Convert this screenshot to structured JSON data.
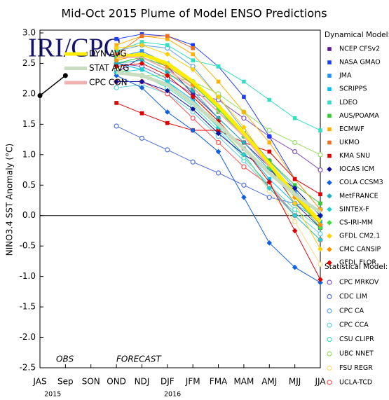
{
  "chart_data": {
    "type": "line",
    "title": "Mid-Oct 2015 Plume of Model ENSO Predictions",
    "ylabel": "NINO3.4 SST Anomaly (°C)",
    "logo": "IRI/CPC",
    "annotations": [
      "OBS",
      "FORECAST"
    ],
    "categories": [
      "JAS",
      "Sep",
      "SON",
      "OND",
      "NDJ",
      "DJF",
      "JFM",
      "FMA",
      "MAM",
      "AMJ",
      "MJJ",
      "JJA"
    ],
    "year_labels": [
      "2015",
      "2016"
    ],
    "ylim": [
      -2.5,
      3.0
    ],
    "yticks": [
      {
        "value": 3.0,
        "label": "3.0"
      },
      2.5,
      {
        "value": 2.0,
        "label": "2.0"
      },
      1.5,
      {
        "value": 1.0,
        "label": "1.0"
      },
      0.5,
      {
        "value": 0.0,
        "label": "0.0"
      },
      -0.5,
      {
        "value": -1.0,
        "label": "-1.0"
      },
      -1.5,
      {
        "value": -2.0,
        "label": "-2.0"
      },
      -2.5
    ],
    "dynamical_legend_title": "Dynamical Model:",
    "statistical_legend_title": "Statistical Model:",
    "observed": {
      "color": "#000000",
      "values": [
        1.97,
        2.3,
        null,
        null,
        null,
        null,
        null,
        null,
        null,
        null,
        null,
        null
      ]
    },
    "series": [
      {
        "name": "NCEP CFSv2",
        "kind": "dynamical",
        "marker": "square",
        "color": "#5a189a",
        "values": [
          null,
          null,
          null,
          2.35,
          2.6,
          2.45,
          2.0,
          1.6,
          1.2,
          0.8,
          0.2,
          -0.2
        ]
      },
      {
        "name": "NASA GMAO",
        "kind": "dynamical",
        "marker": "square",
        "color": "#1e3cff",
        "values": [
          null,
          null,
          null,
          2.9,
          2.98,
          2.95,
          2.8,
          2.45,
          1.95,
          1.3,
          0.6,
          0.1
        ]
      },
      {
        "name": "JMA",
        "kind": "dynamical",
        "marker": "square",
        "color": "#1e90ff",
        "values": [
          null,
          null,
          null,
          2.6,
          2.7,
          2.5,
          2.15,
          1.75,
          1.3,
          0.85,
          0.4,
          0.0
        ]
      },
      {
        "name": "SCRIPPS",
        "kind": "dynamical",
        "marker": "square",
        "color": "#00bfff",
        "values": [
          null,
          null,
          null,
          2.5,
          2.4,
          2.2,
          1.9,
          1.5,
          1.1,
          0.6,
          0.2,
          -0.1
        ]
      },
      {
        "name": "LDEO",
        "kind": "dynamical",
        "marker": "square",
        "color": "#30e0c0",
        "values": [
          null,
          null,
          null,
          2.7,
          2.85,
          2.8,
          2.55,
          2.45,
          2.2,
          1.9,
          1.6,
          1.4
        ]
      },
      {
        "name": "AUS/POAMA",
        "kind": "dynamical",
        "marker": "square",
        "color": "#33cc33",
        "values": [
          null,
          null,
          null,
          2.5,
          2.6,
          2.4,
          2.1,
          1.7,
          1.35,
          0.9,
          0.5,
          0.2
        ]
      },
      {
        "name": "ECMWF",
        "kind": "dynamical",
        "marker": "square",
        "color": "#ffb000",
        "values": [
          null,
          null,
          null,
          2.8,
          2.95,
          2.9,
          2.65,
          2.2,
          1.7,
          1.2,
          0.6,
          0.1
        ]
      },
      {
        "name": "UKMO",
        "kind": "dynamical",
        "marker": "square",
        "color": "#f07020",
        "values": [
          null,
          null,
          null,
          2.65,
          2.95,
          2.95,
          2.75,
          null,
          null,
          null,
          null,
          null
        ]
      },
      {
        "name": "KMA SNU",
        "kind": "dynamical",
        "marker": "square",
        "color": "#e00000",
        "values": [
          null,
          null,
          null,
          1.85,
          1.68,
          1.52,
          1.4,
          1.4,
          1.2,
          1.05,
          0.6,
          0.35
        ]
      },
      {
        "name": "IOCAS ICM",
        "kind": "dynamical",
        "marker": "diamond",
        "color": "#1010a0",
        "values": [
          null,
          null,
          null,
          2.2,
          2.2,
          2.05,
          1.75,
          1.35,
          1.0,
          0.75,
          0.45,
          0.0
        ]
      },
      {
        "name": "COLA CCSM3",
        "kind": "dynamical",
        "marker": "diamond",
        "color": "#1060e0",
        "values": [
          null,
          null,
          null,
          2.3,
          2.1,
          1.7,
          1.4,
          1.05,
          0.3,
          -0.45,
          -0.85,
          -1.1
        ]
      },
      {
        "name": "MetFRANCE",
        "kind": "dynamical",
        "marker": "diamond",
        "color": "#20b0c0",
        "values": [
          null,
          null,
          null,
          2.5,
          2.55,
          2.35,
          2.05,
          1.6,
          1.2,
          0.75,
          null,
          null
        ]
      },
      {
        "name": "SINTEX-F",
        "kind": "dynamical",
        "marker": "diamond",
        "color": "#20d0d0",
        "values": [
          null,
          null,
          null,
          2.35,
          2.4,
          2.2,
          1.85,
          1.45,
          1.0,
          0.45,
          0.0,
          -0.4
        ]
      },
      {
        "name": "CS-IRI-MM",
        "kind": "dynamical",
        "marker": "diamond",
        "color": "#40e040",
        "values": [
          null,
          null,
          null,
          2.6,
          2.6,
          2.45,
          2.15,
          1.75,
          1.3,
          0.8,
          0.3,
          -0.2
        ]
      },
      {
        "name": "GFDL CM2.1",
        "kind": "dynamical",
        "marker": "diamond",
        "color": "#ffd000",
        "values": [
          null,
          null,
          null,
          2.75,
          2.8,
          2.65,
          2.4,
          1.95,
          1.45,
          0.85,
          0.2,
          -0.55
        ]
      },
      {
        "name": "CMC CANSIP",
        "kind": "dynamical",
        "marker": "diamond",
        "color": "#ff9000",
        "values": [
          null,
          null,
          null,
          2.55,
          2.65,
          2.45,
          2.15,
          1.8,
          1.35,
          0.85,
          0.3,
          -0.15
        ]
      },
      {
        "name": "GFDL FLOR",
        "kind": "dynamical",
        "marker": "diamond",
        "color": "#e00000",
        "values": [
          null,
          null,
          null,
          2.45,
          2.5,
          2.3,
          1.95,
          1.55,
          1.1,
          0.55,
          -0.25,
          -1.05
        ]
      },
      {
        "name": "CPC MRKOV",
        "kind": "statistical",
        "marker": "circle",
        "color": "#8050c0",
        "values": [
          null,
          null,
          null,
          2.5,
          2.45,
          2.25,
          2.0,
          1.9,
          1.6,
          1.3,
          1.05,
          0.75
        ]
      },
      {
        "name": "CDC LIM",
        "kind": "statistical",
        "marker": "circle",
        "color": "#5070e0",
        "values": [
          null,
          null,
          null,
          1.47,
          1.27,
          1.08,
          0.88,
          0.7,
          0.5,
          0.3,
          0.2,
          0.1
        ]
      },
      {
        "name": "CPC CA",
        "kind": "statistical",
        "marker": "circle",
        "color": "#60a0f0",
        "values": [
          null,
          null,
          null,
          2.7,
          2.8,
          2.75,
          2.45,
          1.95,
          1.4,
          0.9,
          0.45,
          0.0
        ]
      },
      {
        "name": "CPC CCA",
        "kind": "statistical",
        "marker": "circle",
        "color": "#60d0e0",
        "values": [
          null,
          null,
          null,
          2.1,
          2.15,
          2.0,
          1.7,
          1.3,
          0.9,
          0.45,
          0.05,
          -0.3
        ]
      },
      {
        "name": "CSU CLIPR",
        "kind": "statistical",
        "marker": "circle",
        "color": "#40e0c0",
        "values": [
          null,
          null,
          null,
          2.4,
          2.3,
          2.1,
          1.8,
          1.4,
          0.95,
          0.5,
          0.1,
          -0.2
        ]
      },
      {
        "name": "UBC NNET",
        "kind": "statistical",
        "marker": "circle",
        "color": "#90e060",
        "values": [
          null,
          null,
          null,
          2.4,
          2.3,
          2.3,
          2.2,
          2.0,
          1.7,
          1.4,
          1.2,
          1.0
        ]
      },
      {
        "name": "FSU REGR",
        "kind": "statistical",
        "marker": "circle",
        "color": "#ffd880",
        "values": [
          null,
          null,
          null,
          2.7,
          2.6,
          2.4,
          2.0,
          1.5,
          1.0,
          0.4,
          -0.1,
          -0.8
        ]
      },
      {
        "name": "UCLA-TCD",
        "kind": "statistical",
        "marker": "circle",
        "color": "#ff5050",
        "values": [
          null,
          null,
          null,
          2.2,
          2.2,
          2.0,
          1.6,
          1.2,
          0.8,
          0.5,
          0.0,
          -0.4
        ]
      },
      {
        "name": "DYN AVG",
        "kind": "average",
        "color": "#ffee00",
        "values": [
          null,
          null,
          null,
          2.6,
          2.65,
          2.5,
          2.2,
          1.8,
          1.35,
          0.85,
          0.35,
          -0.1
        ]
      },
      {
        "name": "STAT AVG",
        "kind": "average",
        "color": "#c8dcc0",
        "values": [
          null,
          null,
          null,
          2.35,
          2.3,
          2.15,
          1.85,
          1.5,
          1.1,
          0.7,
          0.35,
          0.05
        ]
      },
      {
        "name": "CPC CON",
        "kind": "average",
        "color": "#f0b0b0",
        "values": [
          null,
          null,
          null,
          2.6,
          2.6,
          2.4,
          2.1,
          1.7,
          1.3,
          0.8,
          null,
          null
        ]
      }
    ]
  }
}
